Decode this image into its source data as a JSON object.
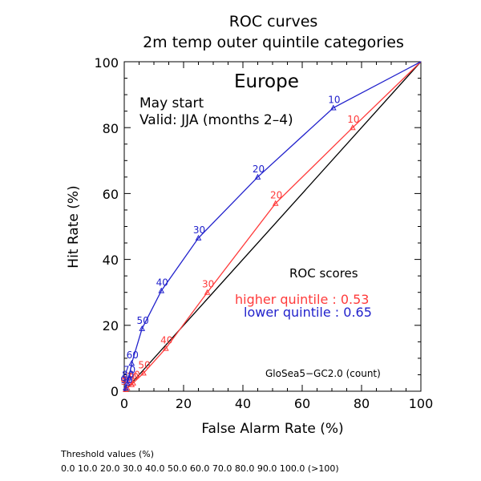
{
  "chart_data": {
    "type": "line",
    "title": "ROC curves",
    "subtitle": "2m temp outer quintile categories",
    "region": "Europe",
    "start_text": "May start",
    "valid_text": "Valid: JJA (months 2–4)",
    "xlabel": "False Alarm Rate (%)",
    "ylabel": "Hit Rate (%)",
    "xlim": [
      0,
      100
    ],
    "ylim": [
      0,
      100
    ],
    "x_ticks": [
      "0",
      "20",
      "40",
      "60",
      "80",
      "100"
    ],
    "y_ticks": [
      "0",
      "20",
      "40",
      "60",
      "80",
      "100"
    ],
    "grid": false,
    "diagonal": true,
    "scores_heading": "ROC scores",
    "series": [
      {
        "name": "higher quintile",
        "score_label": "higher quintile : 0.53",
        "color": "#ff3b3b",
        "points": [
          {
            "x": 0.0,
            "y": 0.0,
            "t": ""
          },
          {
            "x": 0.5,
            "y": 0.5,
            "t": "90"
          },
          {
            "x": 1.0,
            "y": 1.0,
            "t": "80"
          },
          {
            "x": 2.5,
            "y": 2.0,
            "t": "70"
          },
          {
            "x": 3.0,
            "y": 2.5,
            "t": "60"
          },
          {
            "x": 6.5,
            "y": 5.5,
            "t": "50"
          },
          {
            "x": 14.0,
            "y": 13.0,
            "t": "40"
          },
          {
            "x": 28.0,
            "y": 30.0,
            "t": "30"
          },
          {
            "x": 51.0,
            "y": 57.0,
            "t": "20"
          },
          {
            "x": 77.0,
            "y": 80.0,
            "t": "10"
          },
          {
            "x": 100.0,
            "y": 100.0,
            "t": ""
          }
        ]
      },
      {
        "name": "lower quintile",
        "score_label": "lower quintile : 0.65",
        "color": "#2222cc",
        "points": [
          {
            "x": 0.0,
            "y": 0.0,
            "t": ""
          },
          {
            "x": 0.5,
            "y": 1.0,
            "t": "90"
          },
          {
            "x": 1.0,
            "y": 2.5,
            "t": "80"
          },
          {
            "x": 1.5,
            "y": 4.0,
            "t": "70"
          },
          {
            "x": 2.5,
            "y": 8.5,
            "t": "60"
          },
          {
            "x": 6.0,
            "y": 19.0,
            "t": "50"
          },
          {
            "x": 12.5,
            "y": 30.5,
            "t": "40"
          },
          {
            "x": 25.0,
            "y": 46.5,
            "t": "30"
          },
          {
            "x": 45.0,
            "y": 65.0,
            "t": "20"
          },
          {
            "x": 70.5,
            "y": 86.0,
            "t": "10"
          },
          {
            "x": 100.0,
            "y": 100.0,
            "t": ""
          }
        ]
      }
    ],
    "model_label": "GloSea5−GC2.0 (count)"
  },
  "footer": {
    "threshold_title": "Threshold values (%)",
    "threshold_values": "0.0 10.0 20.0 30.0 40.0 50.0 60.0 70.0 80.0 90.0 100.0 (>100)"
  }
}
